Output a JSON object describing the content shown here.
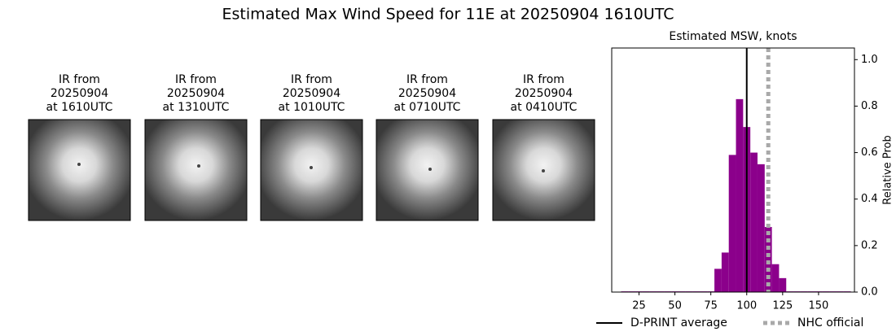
{
  "title": "Estimated Max Wind Speed for 11E at 20250904 1610UTC",
  "panels": [
    {
      "label": [
        "IR from",
        "20250904",
        "at 1610UTC"
      ]
    },
    {
      "label": [
        "IR from",
        "20250904",
        "at 1310UTC"
      ]
    },
    {
      "label": [
        "IR from",
        "20250904",
        "at 1010UTC"
      ]
    },
    {
      "label": [
        "IR from",
        "20250904",
        "at 0710UTC"
      ]
    },
    {
      "label": [
        "IR from",
        "20250904",
        "at 0410UTC"
      ]
    }
  ],
  "chart_data": {
    "type": "histogram",
    "title": "Estimated MSW, knots",
    "y_label": "Relative Prob",
    "color": "#8b008b",
    "bins": [
      12.5,
      17.5,
      22.5,
      27.5,
      32.5,
      37.5,
      42.5,
      47.5,
      52.5,
      57.5,
      62.5,
      67.5,
      72.5,
      77.5,
      82.5,
      87.5,
      92.5,
      97.5,
      102.5,
      107.5,
      112.5,
      117.5,
      122.5,
      127.5,
      132.5,
      137.5,
      142.5,
      147.5,
      152.5,
      157.5,
      162.5,
      167.5,
      172.5
    ],
    "values": [
      0.003,
      0.003,
      0.003,
      0.003,
      0.003,
      0.003,
      0.003,
      0.003,
      0.003,
      0.003,
      0.003,
      0.003,
      0.003,
      0.1,
      0.17,
      0.59,
      0.83,
      0.71,
      0.6,
      0.55,
      0.28,
      0.12,
      0.06,
      0.003,
      0.003,
      0.003,
      0.003,
      0.003,
      0.003,
      0.003,
      0.003,
      0.003
    ],
    "xlim": [
      6,
      175
    ],
    "xticks": [
      25,
      50,
      75,
      100,
      125,
      150
    ],
    "ylim": [
      0,
      1.05
    ],
    "yticks": [
      {
        "value": 0,
        "label": "0.0"
      },
      0.2,
      0.4,
      0.6,
      0.8,
      {
        "value": 1,
        "label": "1.0"
      }
    ],
    "reference_lines": [
      {
        "name": "D-PRINT average",
        "value": 100,
        "color": "#000000",
        "style": "solid"
      },
      {
        "name": "NHC official",
        "value": 115,
        "color": "#a9a9a9",
        "style": "dotted"
      }
    ]
  }
}
